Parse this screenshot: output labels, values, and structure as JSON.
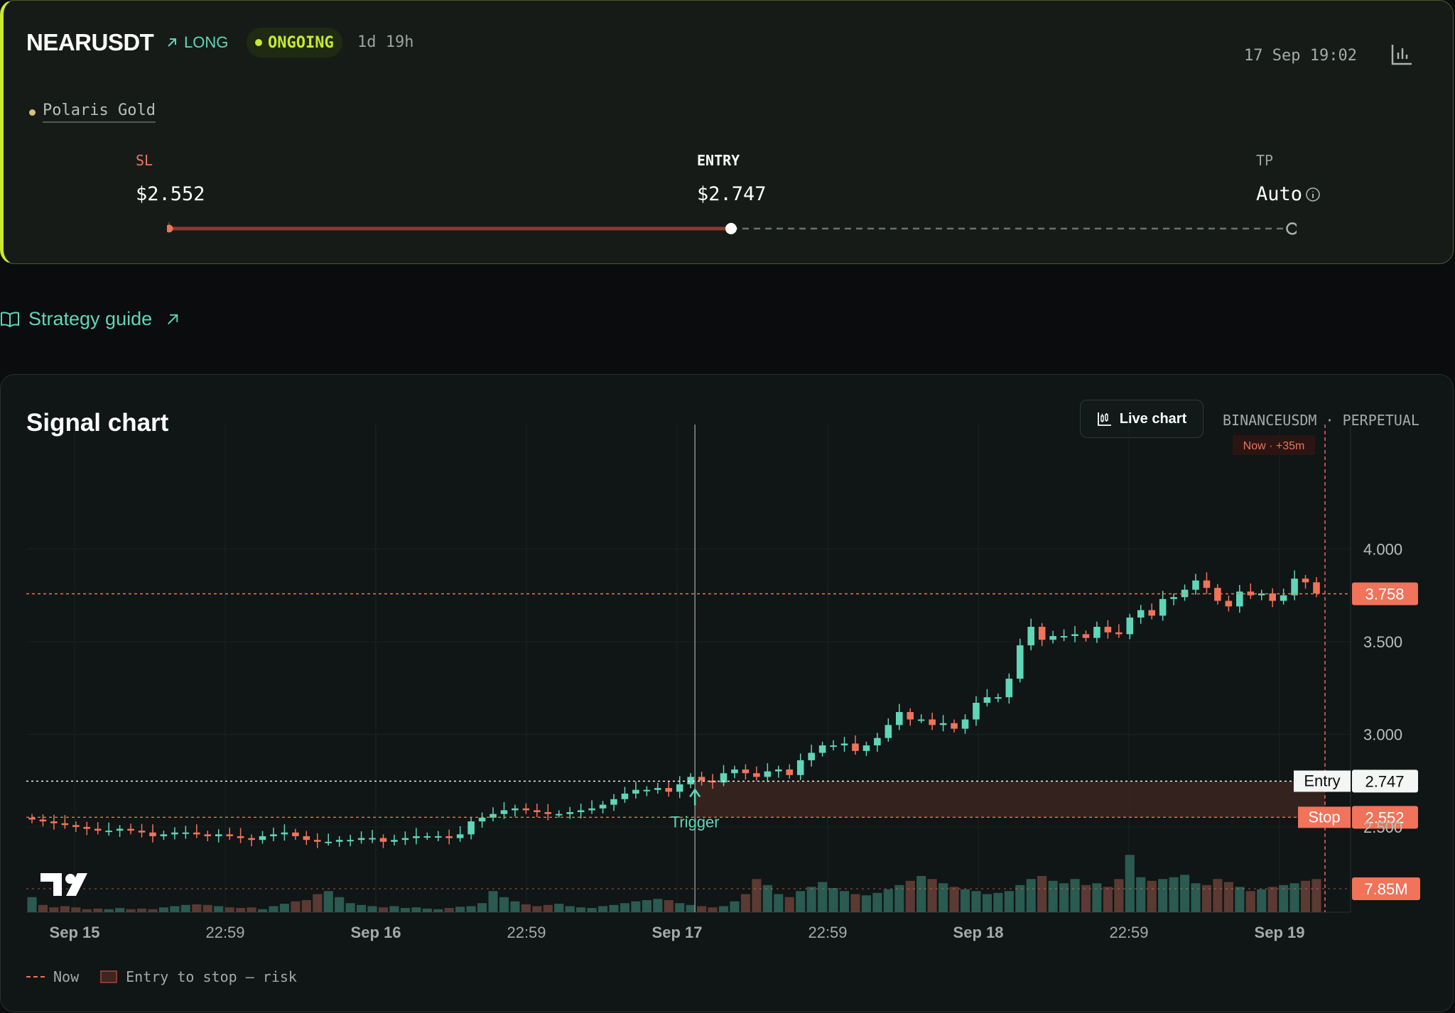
{
  "signal": {
    "symbol": "NEARUSDT",
    "direction": "LONG",
    "status": "ONGOING",
    "duration": "1d 19h",
    "timestamp": "17 Sep 19:02",
    "provider": "Polaris Gold",
    "levels": {
      "sl_label": "SL",
      "sl_value": "$2.552",
      "entry_label": "ENTRY",
      "entry_value": "$2.747",
      "tp_label": "TP",
      "tp_value": "Auto"
    }
  },
  "strategy_guide": {
    "label": "Strategy guide"
  },
  "chart_card": {
    "title": "Signal chart",
    "live_button": "Live chart",
    "exchange": "BINANCEUSDM · PERPETUAL",
    "now_badge": "Now · +35m",
    "trigger_label": "Trigger",
    "entry_tag": "Entry",
    "stop_tag": "Stop",
    "legend_now": "Now",
    "legend_risk": "Entry to stop — risk"
  },
  "colors": {
    "up": "#5fd6b8",
    "down": "#f0735a",
    "accent": "#c9e82f"
  },
  "chart_data": {
    "type": "candlestick",
    "y_tick_labels": [
      "4.000",
      "3.500",
      "3.000",
      "2.500"
    ],
    "x_tick_labels": [
      "Sep 15",
      "22:59",
      "Sep 16",
      "22:59",
      "Sep 17",
      "22:59",
      "Sep 18",
      "22:59",
      "Sep 19"
    ],
    "ylim": [
      2.04,
      4.48
    ],
    "last_price": "3.758",
    "entry_price": "2.747",
    "stop_price": "2.552",
    "volume_label": "7.85M",
    "volume_max": 1.0,
    "closes": [
      2.54,
      2.53,
      2.52,
      2.51,
      2.5,
      2.49,
      2.48,
      2.48,
      2.49,
      2.48,
      2.47,
      2.45,
      2.46,
      2.47,
      2.47,
      2.46,
      2.45,
      2.46,
      2.45,
      2.44,
      2.43,
      2.45,
      2.46,
      2.47,
      2.45,
      2.43,
      2.42,
      2.42,
      2.43,
      2.43,
      2.44,
      2.44,
      2.42,
      2.43,
      2.44,
      2.45,
      2.45,
      2.45,
      2.44,
      2.46,
      2.53,
      2.55,
      2.57,
      2.59,
      2.6,
      2.59,
      2.58,
      2.57,
      2.57,
      2.58,
      2.59,
      2.6,
      2.62,
      2.65,
      2.68,
      2.7,
      2.7,
      2.71,
      2.69,
      2.73,
      2.77,
      2.75,
      2.74,
      2.79,
      2.81,
      2.79,
      2.77,
      2.8,
      2.81,
      2.78,
      2.86,
      2.9,
      2.94,
      2.94,
      2.95,
      2.91,
      2.94,
      2.98,
      3.05,
      3.12,
      3.08,
      3.08,
      3.05,
      3.06,
      3.03,
      3.08,
      3.17,
      3.2,
      3.2,
      3.3,
      3.48,
      3.58,
      3.51,
      3.53,
      3.53,
      3.54,
      3.52,
      3.58,
      3.55,
      3.54,
      3.63,
      3.67,
      3.64,
      3.73,
      3.74,
      3.78,
      3.83,
      3.79,
      3.72,
      3.69,
      3.77,
      3.75,
      3.76,
      3.72,
      3.75,
      3.84,
      3.82,
      3.76
    ],
    "volumes": [
      0.25,
      0.12,
      0.08,
      0.1,
      0.08,
      0.05,
      0.06,
      0.05,
      0.07,
      0.05,
      0.06,
      0.05,
      0.08,
      0.1,
      0.12,
      0.13,
      0.12,
      0.1,
      0.08,
      0.07,
      0.08,
      0.05,
      0.1,
      0.14,
      0.18,
      0.2,
      0.3,
      0.35,
      0.25,
      0.15,
      0.12,
      0.1,
      0.08,
      0.1,
      0.07,
      0.08,
      0.06,
      0.05,
      0.07,
      0.09,
      0.1,
      0.15,
      0.35,
      0.25,
      0.18,
      0.13,
      0.1,
      0.12,
      0.14,
      0.1,
      0.08,
      0.07,
      0.1,
      0.12,
      0.15,
      0.18,
      0.2,
      0.22,
      0.2,
      0.15,
      0.12,
      0.1,
      0.08,
      0.1,
      0.18,
      0.3,
      0.55,
      0.45,
      0.3,
      0.25,
      0.35,
      0.42,
      0.5,
      0.4,
      0.35,
      0.3,
      0.28,
      0.32,
      0.38,
      0.45,
      0.52,
      0.6,
      0.55,
      0.48,
      0.42,
      0.38,
      0.35,
      0.3,
      0.32,
      0.35,
      0.45,
      0.55,
      0.6,
      0.52,
      0.48,
      0.55,
      0.45,
      0.48,
      0.42,
      0.55,
      0.95,
      0.58,
      0.52,
      0.55,
      0.58,
      0.62,
      0.48,
      0.45,
      0.55,
      0.5,
      0.42,
      0.35,
      0.38,
      0.42,
      0.45,
      0.48,
      0.52,
      0.55
    ]
  }
}
